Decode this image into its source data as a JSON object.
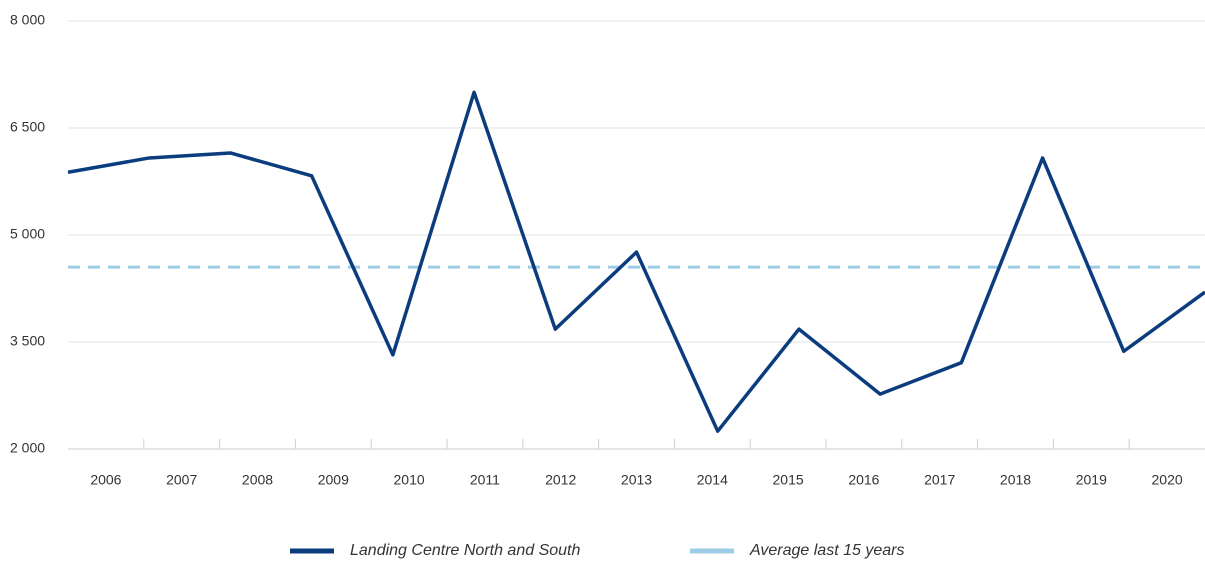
{
  "chart_data": {
    "type": "line",
    "categories": [
      "2006",
      "2007",
      "2008",
      "2009",
      "2010",
      "2011",
      "2012",
      "2013",
      "2014",
      "2015",
      "2016",
      "2017",
      "2018",
      "2019",
      "2020"
    ],
    "series": [
      {
        "name": "Landing Centre North and South",
        "color": "#0b3d7e",
        "values": [
          5880,
          6080,
          6150,
          5830,
          3320,
          7000,
          3680,
          4760,
          2250,
          3680,
          2770,
          3210,
          6080,
          3370,
          4200
        ]
      },
      {
        "name": "Average last 15 years",
        "color": "#9ecbe6",
        "dashed": true,
        "values": [
          4550,
          4550,
          4550,
          4550,
          4550,
          4550,
          4550,
          4550,
          4550,
          4550,
          4550,
          4550,
          4550,
          4550,
          4550
        ]
      }
    ],
    "ylim": [
      2000,
      8000
    ],
    "yticks": [
      {
        "value": 2000,
        "label": "2 000"
      },
      {
        "value": 3500,
        "label": "3 500"
      },
      {
        "value": 5000,
        "label": "5 000"
      },
      {
        "value": 6500,
        "label": "6 500"
      },
      {
        "value": 8000,
        "label": "8 000"
      }
    ],
    "grid": true,
    "legend": "bottom"
  }
}
